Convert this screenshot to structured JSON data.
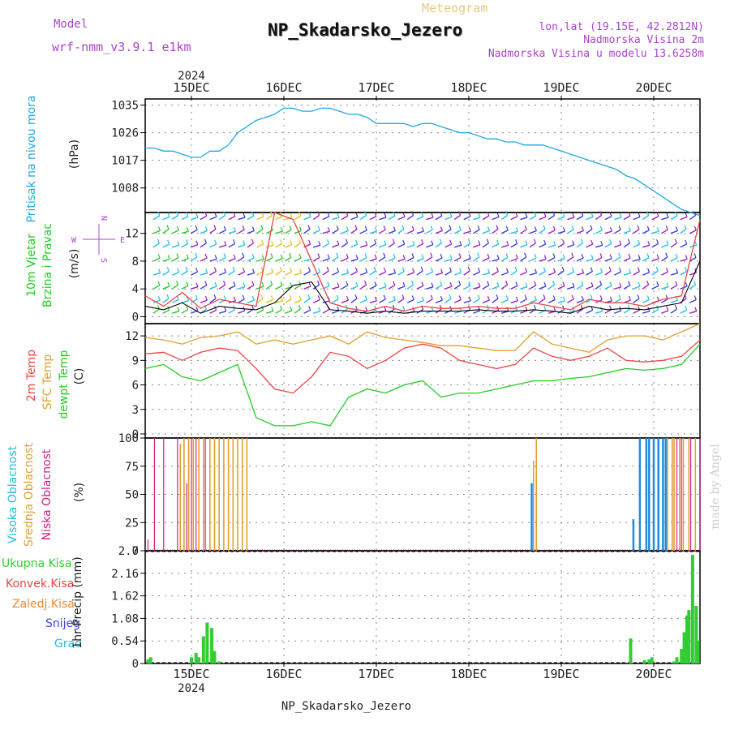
{
  "header": {
    "model_label": "Model",
    "model_name": "wrf-nmm_v3.9.1  e1km",
    "meteogram_label": "Meteogram",
    "station": "NP_Skadarsko_Jezero",
    "lonlat": "lon,lat (19.15E, 42.2812N)",
    "altitude": "Nadmorska Visina 2m",
    "model_altitude": "Nadmorska Visina u modelu 13.6258m",
    "year": "2024",
    "footer_station": "NP_Skadarsko_Jezero",
    "credit": "made by Angel"
  },
  "colors": {
    "pressure": "#22a6e6",
    "wind_cyan": "#20c0e8",
    "wind_purple": "#9a1fbf",
    "wind_blue": "#3a3adf",
    "wind_green": "#28c828",
    "wind_yellow": "#e0c020",
    "t2m": "#ee4444",
    "tsfc": "#e0a030",
    "dewpt": "#22cc22",
    "cloud_high": "#2288dd",
    "cloud_mid": "#e0a030",
    "cloud_low": "#cc2288",
    "precip_total": "#33cc33",
    "precip_conv": "#ee4444",
    "precip_frozen": "#ee8833",
    "snow": "#4444dd",
    "hail": "#22bbdd",
    "label_purple": "#aa44cc"
  },
  "x_axis": {
    "top_labels": [
      "15DEC",
      "16DEC",
      "17DEC",
      "18DEC",
      "19DEC",
      "20DEC"
    ],
    "bottom_labels": [
      "15DEC",
      "16DEC",
      "17DEC",
      "18DEC",
      "19DEC",
      "20DEC"
    ],
    "day_positions": [
      0.5,
      1.5,
      2.5,
      3.5,
      4.5,
      5.5
    ],
    "range": [
      0,
      6
    ]
  },
  "chart_data": [
    {
      "type": "line",
      "panel": "pressure",
      "ylabel": "Pritisak na nivou mora",
      "unit": "(hPa)",
      "yticks": [
        1008,
        1017,
        1026,
        1035
      ],
      "ylim": [
        1000,
        1037
      ],
      "x": [
        0.0,
        0.1,
        0.2,
        0.3,
        0.4,
        0.5,
        0.6,
        0.7,
        0.8,
        0.9,
        1.0,
        1.1,
        1.2,
        1.3,
        1.4,
        1.5,
        1.6,
        1.7,
        1.8,
        1.9,
        2.0,
        2.1,
        2.2,
        2.3,
        2.4,
        2.5,
        2.6,
        2.7,
        2.8,
        2.9,
        3.0,
        3.1,
        3.2,
        3.3,
        3.4,
        3.5,
        3.6,
        3.7,
        3.8,
        3.9,
        4.0,
        4.1,
        4.2,
        4.3,
        4.4,
        4.5,
        4.6,
        4.7,
        4.8,
        4.9,
        5.0,
        5.1,
        5.2,
        5.3,
        5.4,
        5.5,
        5.6,
        5.7,
        5.8,
        5.9,
        6.0
      ],
      "values": [
        1021,
        1021,
        1020,
        1020,
        1019,
        1018,
        1018,
        1020,
        1020,
        1022,
        1026,
        1028,
        1030,
        1031,
        1032,
        1034,
        1034,
        1033,
        1033,
        1034,
        1034,
        1033,
        1032,
        1032,
        1031,
        1029,
        1029,
        1029,
        1029,
        1028,
        1029,
        1029,
        1028,
        1027,
        1026,
        1026,
        1025,
        1024,
        1024,
        1023,
        1023,
        1022,
        1022,
        1022,
        1021,
        1020,
        1019,
        1018,
        1017,
        1016,
        1015,
        1014,
        1012,
        1011,
        1009,
        1007,
        1005,
        1003,
        1001,
        1000,
        999
      ]
    },
    {
      "type": "line",
      "panel": "wind",
      "ylabel": "10m Vjetar Brzina i Pravac",
      "unit": "(m/s)",
      "yticks": [
        0,
        4,
        8,
        12
      ],
      "ylim": [
        -1,
        15
      ],
      "compass": [
        "N",
        "E",
        "S",
        "W"
      ],
      "speed_x": [
        0.0,
        0.2,
        0.4,
        0.6,
        0.8,
        1.0,
        1.2,
        1.4,
        1.6,
        1.8,
        2.0,
        2.2,
        2.4,
        2.6,
        2.8,
        3.0,
        3.2,
        3.4,
        3.6,
        3.8,
        4.0,
        4.2,
        4.4,
        4.6,
        4.8,
        5.0,
        5.2,
        5.4,
        5.6,
        5.8,
        6.0
      ],
      "speed": [
        1.5,
        1.0,
        2.0,
        0.5,
        1.5,
        1.2,
        1.0,
        2.0,
        4.5,
        5.0,
        1.0,
        0.8,
        0.5,
        0.8,
        0.5,
        0.8,
        0.8,
        0.8,
        1.0,
        0.8,
        0.8,
        1.0,
        0.8,
        0.5,
        1.5,
        1.0,
        1.2,
        1.0,
        1.5,
        2.0,
        8.0
      ],
      "gust_x": [
        0.0,
        0.2,
        0.4,
        0.6,
        0.8,
        1.0,
        1.2,
        1.4,
        1.6,
        1.8,
        2.0,
        2.2,
        2.4,
        2.6,
        2.8,
        3.0,
        3.2,
        3.4,
        3.6,
        3.8,
        4.0,
        4.2,
        4.4,
        4.6,
        4.8,
        5.0,
        5.2,
        5.4,
        5.6,
        5.8,
        6.0
      ],
      "gust": [
        3.0,
        1.5,
        3.5,
        1.2,
        2.5,
        2.0,
        1.5,
        15.0,
        14.0,
        8.0,
        2.0,
        1.2,
        0.8,
        1.5,
        0.8,
        1.5,
        1.2,
        1.2,
        1.5,
        1.2,
        1.2,
        2.0,
        1.5,
        1.0,
        2.5,
        2.0,
        2.0,
        1.5,
        2.5,
        3.0,
        14.0
      ]
    },
    {
      "type": "line",
      "panel": "temperature",
      "ylabel_t2m": "2m Temp",
      "ylabel_sfc": "SFC Temp",
      "ylabel_dew": "dewpt Temp",
      "unit": "(C)",
      "yticks": [
        0,
        3,
        6,
        9,
        12
      ],
      "ylim": [
        -0.5,
        13.5
      ],
      "x": [
        0.0,
        0.2,
        0.4,
        0.6,
        0.8,
        1.0,
        1.2,
        1.4,
        1.6,
        1.8,
        2.0,
        2.2,
        2.4,
        2.6,
        2.8,
        3.0,
        3.2,
        3.4,
        3.6,
        3.8,
        4.0,
        4.2,
        4.4,
        4.6,
        4.8,
        5.0,
        5.2,
        5.4,
        5.6,
        5.8,
        6.0
      ],
      "series": [
        {
          "name": "SFC Temp",
          "values": [
            11.8,
            11.5,
            11.0,
            11.8,
            12.0,
            12.5,
            11.0,
            11.5,
            11.0,
            11.5,
            12.0,
            11.0,
            12.5,
            11.8,
            11.5,
            11.2,
            10.8,
            10.8,
            10.5,
            10.2,
            10.2,
            12.5,
            11.0,
            10.5,
            10.0,
            11.5,
            12.0,
            12.0,
            11.5,
            12.5,
            13.5
          ]
        },
        {
          "name": "2m Temp",
          "values": [
            9.8,
            10.0,
            9.0,
            10.0,
            10.5,
            10.2,
            8.0,
            5.5,
            5.0,
            7.0,
            10.0,
            9.5,
            8.0,
            9.0,
            10.5,
            11.0,
            10.5,
            9.0,
            8.5,
            8.0,
            8.5,
            10.5,
            9.5,
            9.0,
            9.5,
            10.5,
            9.0,
            8.8,
            9.0,
            9.5,
            11.5
          ]
        },
        {
          "name": "dewpt Temp",
          "values": [
            8.0,
            8.5,
            7.0,
            6.5,
            7.5,
            8.5,
            2.0,
            1.0,
            1.0,
            1.5,
            1.0,
            4.5,
            5.5,
            5.0,
            6.0,
            6.5,
            4.5,
            5.0,
            5.0,
            5.5,
            6.0,
            6.5,
            6.5,
            6.8,
            7.0,
            7.5,
            8.0,
            7.8,
            8.0,
            8.5,
            11.0
          ]
        }
      ]
    },
    {
      "type": "bar",
      "panel": "clouds",
      "ylabel_high": "Visoka Oblacnost",
      "ylabel_mid": "Srednja Oblacnost",
      "ylabel_low": "Niska Oblacnost",
      "unit": "(%)",
      "yticks": [
        0,
        25,
        50,
        75,
        100
      ],
      "ylim": [
        0,
        100
      ],
      "low": {
        "x": [
          0.03,
          0.1,
          0.2,
          0.35,
          0.45,
          0.5,
          0.55,
          0.65,
          5.5,
          5.6,
          5.9,
          6.0,
          5.75,
          5.8
        ],
        "values": [
          10,
          100,
          100,
          100,
          60,
          100,
          100,
          100,
          100,
          100,
          100,
          100,
          100,
          100
        ]
      },
      "mid": {
        "x": [
          0.38,
          0.42,
          0.47,
          0.52,
          0.58,
          0.63,
          0.7,
          0.75,
          0.8,
          0.85,
          0.9,
          0.95,
          1.0,
          1.05,
          1.1,
          4.2,
          4.23,
          5.65,
          5.7,
          5.72,
          5.78,
          5.82,
          5.88,
          5.95
        ],
        "values": [
          95,
          100,
          100,
          100,
          100,
          100,
          100,
          100,
          100,
          100,
          100,
          100,
          100,
          100,
          100,
          80,
          100,
          100,
          100,
          100,
          100,
          100,
          100,
          100
        ]
      },
      "high": {
        "x": [
          4.18,
          5.28,
          5.35,
          5.42,
          5.45,
          5.5,
          5.55,
          5.6,
          5.63
        ],
        "values": [
          60,
          28,
          100,
          100,
          100,
          100,
          100,
          100,
          100
        ]
      }
    },
    {
      "type": "bar",
      "panel": "precip",
      "ylabel": "1hr Precip",
      "unit": "(mm)",
      "legend": [
        "Ukupna Kisa",
        "Konvek.Kisa",
        "Zaledj.Kisa",
        "Snijeg",
        "Grad"
      ],
      "yticks": [
        0,
        0.54,
        1.08,
        1.62,
        2.16,
        2.7
      ],
      "ylim": [
        0,
        2.7
      ],
      "x": [
        0.03,
        0.06,
        0.5,
        0.55,
        0.58,
        0.63,
        0.67,
        0.72,
        0.75,
        0.8,
        5.25,
        5.4,
        5.45,
        5.48,
        5.72,
        5.75,
        5.8,
        5.83,
        5.86,
        5.88,
        5.92,
        5.96,
        5.98
      ],
      "values": [
        0.1,
        0.15,
        0.15,
        0.25,
        0.15,
        0.65,
        0.98,
        0.85,
        0.3,
        0.05,
        0.6,
        0.08,
        0.1,
        0.15,
        0.05,
        0.15,
        0.35,
        0.75,
        1.15,
        1.28,
        2.6,
        1.38,
        0.55
      ]
    }
  ]
}
